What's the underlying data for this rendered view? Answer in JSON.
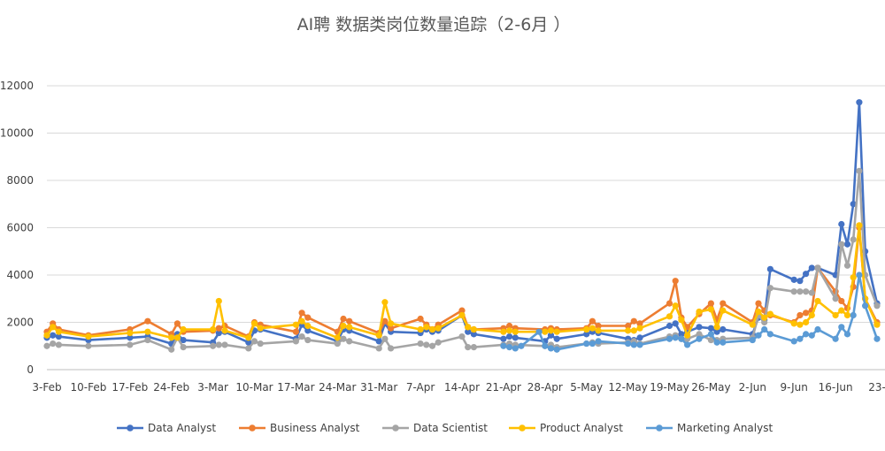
{
  "chart_data": {
    "type": "line",
    "title": "AI聘 数据类岗位数量追踪（2-6月 ）",
    "xlabel": "",
    "ylabel": "",
    "ylim": [
      0,
      12000
    ],
    "yticks": [
      0,
      2000,
      4000,
      6000,
      8000,
      10000,
      12000
    ],
    "ytick_labels": [
      "0",
      "2000",
      "4000",
      "6000",
      "8000",
      "10000",
      "12000"
    ],
    "xticks": [
      "3-Feb",
      "10-Feb",
      "17-Feb",
      "24-Feb",
      "3-Mar",
      "10-Mar",
      "17-Mar",
      "24-Mar",
      "31-Mar",
      "7-Apr",
      "14-Apr",
      "21-Apr",
      "28-Apr",
      "5-May",
      "12-May",
      "19-May",
      "26-May",
      "2-Jun",
      "9-Jun",
      "16-Jun",
      "23-"
    ],
    "xtick_days": [
      0,
      7,
      14,
      21,
      28,
      35,
      42,
      49,
      56,
      63,
      70,
      77,
      84,
      91,
      98,
      105,
      112,
      119,
      126,
      133,
      140
    ],
    "grid": "horizontal",
    "legend_position": "bottom",
    "series": [
      {
        "name": "Data Analyst",
        "color": "#4472C4",
        "x": [
          0,
          1,
          2,
          7,
          14,
          17,
          21,
          22,
          23,
          28,
          29,
          30,
          34,
          35,
          36,
          42,
          43,
          44,
          49,
          50,
          51,
          56,
          57,
          58,
          63,
          64,
          65,
          66,
          70,
          71,
          72,
          77,
          78,
          79,
          84,
          85,
          86,
          91,
          92,
          93,
          98,
          99,
          100,
          105,
          106,
          107,
          108,
          110,
          112,
          113,
          114,
          119,
          120,
          121,
          122,
          126,
          127,
          128,
          129,
          130,
          133,
          134,
          135,
          136,
          137,
          138,
          140
        ],
        "y": [
          1350,
          1450,
          1400,
          1250,
          1350,
          1400,
          1100,
          1500,
          1250,
          1150,
          1550,
          1600,
          1150,
          1650,
          1700,
          1300,
          1900,
          1650,
          1200,
          1700,
          1650,
          1200,
          1950,
          1600,
          1550,
          1700,
          1600,
          1650,
          2300,
          1600,
          1500,
          1300,
          1400,
          1350,
          1200,
          1450,
          1300,
          1500,
          1600,
          1550,
          1300,
          1250,
          1350,
          1850,
          1950,
          1500,
          1600,
          1800,
          1750,
          1600,
          1700,
          1500,
          2200,
          2100,
          4250,
          3800,
          3750,
          4050,
          4300,
          4300,
          4000,
          6150,
          5300,
          7000,
          11300,
          5000,
          2800
        ]
      },
      {
        "name": "Business Analyst",
        "color": "#ED7D31",
        "x": [
          0,
          1,
          2,
          7,
          14,
          17,
          21,
          22,
          23,
          28,
          29,
          30,
          34,
          35,
          36,
          42,
          43,
          44,
          49,
          50,
          51,
          56,
          57,
          58,
          63,
          64,
          65,
          66,
          70,
          71,
          72,
          77,
          78,
          79,
          84,
          85,
          86,
          91,
          92,
          93,
          98,
          99,
          100,
          105,
          106,
          107,
          108,
          110,
          112,
          113,
          114,
          119,
          120,
          121,
          122,
          126,
          127,
          128,
          129,
          130,
          133,
          134,
          135,
          136,
          137,
          138,
          140
        ],
        "y": [
          1600,
          1950,
          1700,
          1450,
          1700,
          2050,
          1500,
          1950,
          1600,
          1650,
          1750,
          1850,
          1400,
          2000,
          1900,
          1600,
          2400,
          2200,
          1600,
          2150,
          2050,
          1550,
          2050,
          1750,
          2150,
          1900,
          1700,
          1900,
          2500,
          1800,
          1700,
          1750,
          1850,
          1750,
          1700,
          1750,
          1700,
          1750,
          2050,
          1850,
          1850,
          2050,
          1950,
          2800,
          3750,
          2200,
          1800,
          2350,
          2800,
          2100,
          2800,
          2000,
          2800,
          2500,
          2300,
          2000,
          2300,
          2400,
          2500,
          4300,
          3300,
          2900,
          2600,
          3500,
          6000,
          3000,
          2000
        ]
      },
      {
        "name": "Data Scientist",
        "color": "#A5A5A5",
        "x": [
          0,
          1,
          2,
          7,
          14,
          17,
          21,
          22,
          23,
          28,
          29,
          30,
          34,
          35,
          36,
          42,
          43,
          44,
          49,
          50,
          51,
          56,
          57,
          58,
          63,
          64,
          65,
          66,
          70,
          71,
          72,
          77,
          78,
          79,
          84,
          85,
          86,
          91,
          92,
          93,
          98,
          99,
          100,
          105,
          106,
          107,
          108,
          110,
          112,
          113,
          114,
          119,
          120,
          121,
          122,
          126,
          127,
          128,
          129,
          130,
          133,
          134,
          135,
          136,
          137,
          138,
          140
        ],
        "y": [
          1000,
          1100,
          1050,
          1000,
          1050,
          1250,
          850,
          1350,
          950,
          1000,
          1050,
          1050,
          900,
          1200,
          1100,
          1200,
          1400,
          1250,
          1100,
          1300,
          1200,
          900,
          1300,
          900,
          1100,
          1050,
          1000,
          1150,
          1400,
          950,
          950,
          1050,
          1100,
          1050,
          1000,
          1050,
          950,
          1100,
          1150,
          1100,
          1150,
          1200,
          1100,
          1400,
          1450,
          1300,
          1300,
          1500,
          1250,
          1250,
          1300,
          1350,
          2300,
          2000,
          3450,
          3300,
          3300,
          3300,
          3250,
          4300,
          3000,
          5300,
          4400,
          5500,
          8400,
          4000,
          2700
        ]
      },
      {
        "name": "Product Analyst",
        "color": "#FFC000",
        "x": [
          0,
          1,
          2,
          7,
          14,
          17,
          21,
          22,
          23,
          28,
          29,
          30,
          34,
          35,
          36,
          42,
          43,
          44,
          49,
          50,
          51,
          56,
          57,
          58,
          63,
          64,
          65,
          66,
          70,
          71,
          72,
          77,
          78,
          79,
          84,
          85,
          86,
          91,
          92,
          93,
          98,
          99,
          100,
          105,
          106,
          107,
          108,
          110,
          112,
          113,
          114,
          119,
          120,
          121,
          122,
          126,
          127,
          128,
          129,
          130,
          133,
          134,
          135,
          136,
          137,
          138,
          140
        ],
        "y": [
          1450,
          1800,
          1600,
          1400,
          1550,
          1600,
          1350,
          1350,
          1700,
          1700,
          2900,
          1650,
          1350,
          1950,
          1750,
          1900,
          2050,
          1850,
          1350,
          1850,
          1800,
          1450,
          2850,
          1950,
          1700,
          1800,
          1700,
          1750,
          2300,
          1800,
          1700,
          1600,
          1650,
          1600,
          1600,
          1650,
          1600,
          1700,
          1750,
          1650,
          1650,
          1650,
          1750,
          2250,
          2700,
          2100,
          1450,
          2450,
          2550,
          1800,
          2500,
          1900,
          2450,
          2200,
          2350,
          1950,
          1900,
          2000,
          2300,
          2900,
          2300,
          2500,
          2300,
          3900,
          6100,
          3000,
          1900
        ]
      },
      {
        "name": "Marketing Analyst",
        "color": "#5B9BD5",
        "x": [
          77,
          78,
          79,
          80,
          83,
          84,
          85,
          86,
          91,
          92,
          93,
          98,
          99,
          100,
          105,
          106,
          107,
          108,
          110,
          112,
          113,
          114,
          119,
          120,
          121,
          122,
          126,
          127,
          128,
          129,
          130,
          133,
          134,
          135,
          136,
          137,
          138,
          140
        ],
        "y": [
          1000,
          950,
          900,
          1000,
          1600,
          1000,
          900,
          850,
          1100,
          1100,
          1200,
          1100,
          1050,
          1050,
          1300,
          1350,
          1300,
          1050,
          1300,
          1500,
          1150,
          1150,
          1250,
          1450,
          1700,
          1500,
          1200,
          1300,
          1500,
          1450,
          1700,
          1300,
          1800,
          1500,
          2300,
          4000,
          2700,
          1300
        ]
      }
    ]
  }
}
